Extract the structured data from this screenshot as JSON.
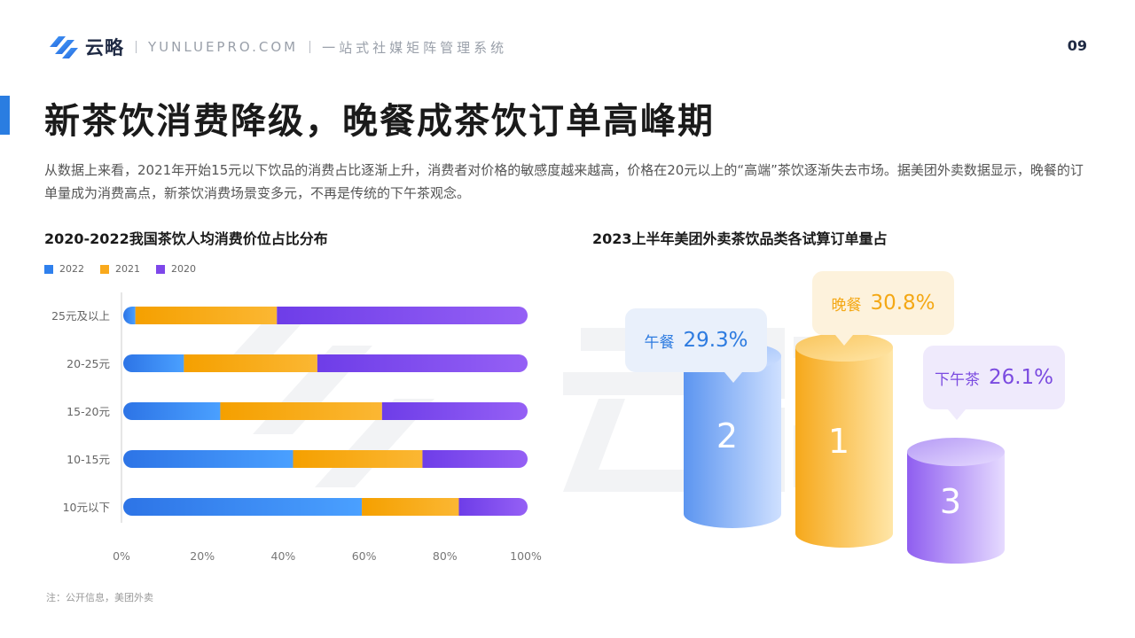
{
  "header": {
    "brand": "云略",
    "domain": "YUNLUEPRO.COM",
    "tagline": "一站式社媒矩阵管理系统",
    "page_number": "09"
  },
  "title": "新茶饮消费降级，晚餐成茶饮订单高峰期",
  "description": "从数据上来看，2021年开始15元以下饮品的消费占比逐渐上升，消费者对价格的敏感度越来越高，价格在20元以上的“高端”茶饮逐渐失去市场。据美团外卖数据显示，晚餐的订单量成为消费高点，新茶饮消费场景变多元，不再是传统的下午茶观念。",
  "footnote": "注：公开信息，美团外卖",
  "colors": {
    "blue": "#2f80ed",
    "orange": "#f9a91c",
    "purple": "#7e47ea",
    "accent": "#2a7de1"
  },
  "chart_data": [
    {
      "type": "bar",
      "orientation": "horizontal",
      "stacked": true,
      "title": "2020-2022我国茶饮人均消费价位占比分布",
      "categories": [
        "25元及以上",
        "20-25元",
        "15-20元",
        "10-15元",
        "10元以下"
      ],
      "series": [
        {
          "name": "2022",
          "values": [
            3,
            15,
            24,
            42,
            59
          ]
        },
        {
          "name": "2021",
          "values": [
            35,
            33,
            40,
            32,
            24
          ]
        },
        {
          "name": "2020",
          "values": [
            62,
            52,
            36,
            26,
            17
          ]
        }
      ],
      "xlim": [
        0,
        100
      ],
      "x_ticks": [
        "0%",
        "20%",
        "40%",
        "60%",
        "80%",
        "100%"
      ],
      "legend_position": "top-left",
      "grid": false
    },
    {
      "type": "bar",
      "title": "2023上半年美团外卖茶饮品类各试算订单量占",
      "categories": [
        "午餐",
        "晚餐",
        "下午茶"
      ],
      "values": [
        29.3,
        30.8,
        26.1
      ],
      "value_labels": [
        "29.3%",
        "30.8%",
        "26.1%"
      ],
      "ranks": [
        "2",
        "1",
        "3"
      ],
      "colors": [
        "#2f80ed",
        "#f9a91c",
        "#7e47ea"
      ]
    }
  ]
}
